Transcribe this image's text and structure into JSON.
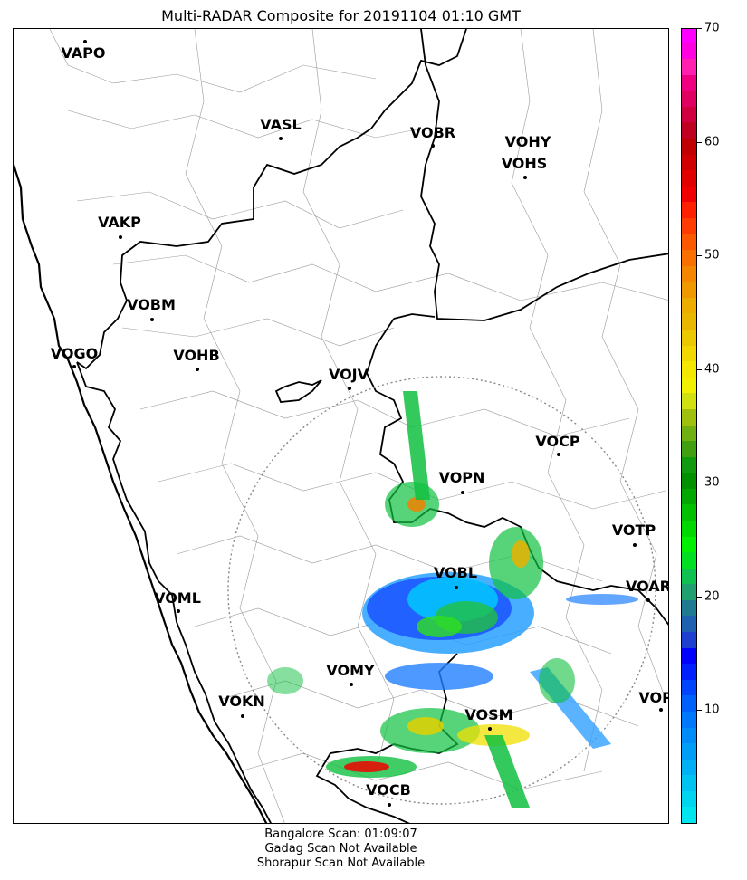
{
  "title": "Multi-RADAR Composite for 20191104 01:10 GMT",
  "stations": [
    {
      "id": "VAPO",
      "label": "VAPO"
    },
    {
      "id": "VASL",
      "label": "VASL"
    },
    {
      "id": "VOBR",
      "label": "VOBR"
    },
    {
      "id": "VOHY",
      "label": "VOHY"
    },
    {
      "id": "VOHS",
      "label": "VOHS"
    },
    {
      "id": "VAKP",
      "label": "VAKP"
    },
    {
      "id": "VOBM",
      "label": "VOBM"
    },
    {
      "id": "VOGO",
      "label": "VOGO"
    },
    {
      "id": "VOHB",
      "label": "VOHB"
    },
    {
      "id": "VOJV",
      "label": "VOJV"
    },
    {
      "id": "VOCP",
      "label": "VOCP"
    },
    {
      "id": "VOPN",
      "label": "VOPN"
    },
    {
      "id": "VOTP",
      "label": "VOTP"
    },
    {
      "id": "VOBL",
      "label": "VOBL"
    },
    {
      "id": "VOAR",
      "label": "VOAR"
    },
    {
      "id": "VOML",
      "label": "VOML"
    },
    {
      "id": "VOMY",
      "label": "VOMY"
    },
    {
      "id": "VOKN",
      "label": "VOKN"
    },
    {
      "id": "VOPC",
      "label": "VOPC"
    },
    {
      "id": "VOSM",
      "label": "VOSM"
    },
    {
      "id": "VOCB",
      "label": "VOCB"
    }
  ],
  "colorbar": {
    "min": 0,
    "max": 70,
    "ticks": [
      "10",
      "20",
      "30",
      "40",
      "50",
      "60",
      "70"
    ],
    "colors": [
      "#00e5ee",
      "#00d5f0",
      "#00c3f2",
      "#00b0f4",
      "#009ef7",
      "#008cf8",
      "#0078fa",
      "#0060fb",
      "#0045fc",
      "#0020fd",
      "#0000ff",
      "#1f3fd0",
      "#2060b0",
      "#207a90",
      "#20a070",
      "#10c050",
      "#00e020",
      "#00f000",
      "#00d800",
      "#00c000",
      "#00a800",
      "#009000",
      "#109a10",
      "#40a010",
      "#70b010",
      "#a0c010",
      "#d0e010",
      "#f0f000",
      "#f5e800",
      "#f0d800",
      "#ebc800",
      "#e8b800",
      "#ecac00",
      "#f09800",
      "#f58600",
      "#f87000",
      "#fc5800",
      "#ff3c00",
      "#ff2000",
      "#f00000",
      "#e00000",
      "#d00000",
      "#c00000",
      "#c00020",
      "#d00040",
      "#e00060",
      "#f00080",
      "#ff20b0",
      "#ff00e0",
      "#ff00ff"
    ]
  },
  "footer": [
    "Bangalore Scan: 01:09:07",
    "Gadag Scan Not Available",
    "Shorapur Scan Not Available"
  ]
}
